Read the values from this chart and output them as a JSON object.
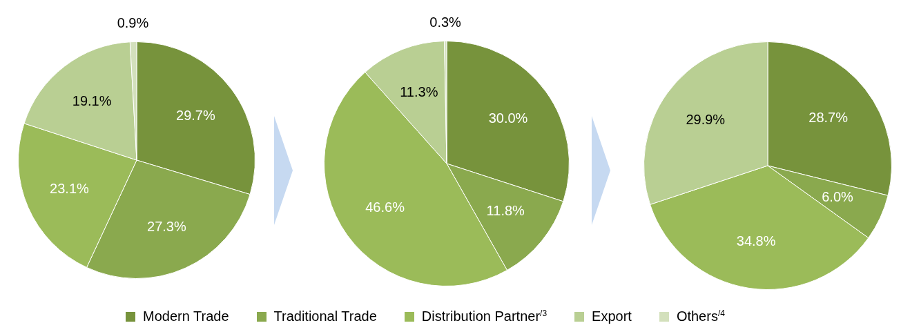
{
  "chart_data": [
    {
      "type": "pie",
      "categories": [
        "Modern Trade",
        "Traditional Trade",
        "Distribution Partner$^{/3}$",
        "Export",
        "Others$^{/4}$"
      ],
      "values": [
        29.7,
        27.3,
        23.1,
        19.1,
        0.9
      ],
      "value_labels": [
        "29.7%",
        "27.3%",
        "23.1%",
        "19.1%",
        "0.9%"
      ],
      "colors": [
        "#77933c",
        "#8aa94e",
        "#9bbb59",
        "#b9cf93",
        "#d3e0bc"
      ],
      "legend": "bottom"
    },
    {
      "type": "pie",
      "categories": [
        null,
        null,
        null,
        null,
        null
      ],
      "values": [
        30.0,
        11.8,
        46.6,
        11.3,
        0.3
      ],
      "value_labels": [
        "30.0%",
        "11.8%",
        "46.6%",
        "11.3%",
        "0.3%"
      ],
      "colors": [
        "#77933c",
        "#8aa94e",
        "#9bbb59",
        "#b9cf93",
        "#d3e0bc"
      ]
    },
    {
      "type": "pie",
      "categories": [
        null,
        null,
        null,
        null,
        null
      ],
      "values": [
        28.7,
        6.0,
        34.8,
        29.9,
        null
      ],
      "value_labels": [
        "28.7%",
        "6.0%",
        "34.8%",
        "29.9%",
        null
      ],
      "colors": [
        "#77933c",
        "#8aa94e",
        "#9bbb59",
        "#b9cf93",
        "#d3e0bc"
      ]
    }
  ]
}
